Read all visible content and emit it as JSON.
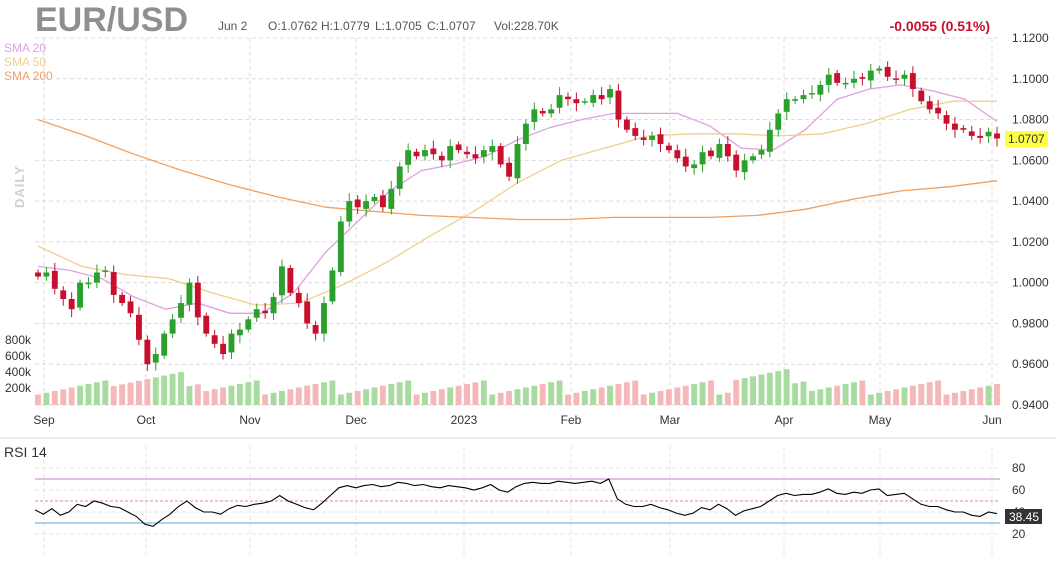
{
  "header": {
    "symbol": "EUR/USD",
    "date": "Jun 2",
    "open": "O:1.0762",
    "high": "H:1.0779",
    "low": "L:1.0705",
    "close": "C:1.0707",
    "volume": "Vol:228.70K",
    "change": "-0.0055 (0.51%)"
  },
  "watermark": "DAILY",
  "legend": [
    {
      "label": "SMA 20",
      "color": "#e0a0e0"
    },
    {
      "label": "SMA 50",
      "color": "#f0cf8c"
    },
    {
      "label": "SMA 200",
      "color": "#f0a060"
    }
  ],
  "colors": {
    "up": "#2ca02c",
    "down": "#c8102e",
    "up_volume": "#a8dba0",
    "down_volume": "#f4b8b8",
    "last_price_bg": "#ffff44",
    "rsi_line": "#000000",
    "rsi_upper": "#c080c0",
    "rsi_lower": "#5aa8d8",
    "rsi_mid": "#d88888"
  },
  "chart_data": [
    {
      "type": "candlestick",
      "title": "EUR/USD",
      "ylim": [
        0.94,
        1.12
      ],
      "y_ticks": [
        "1.1200",
        "1.1000",
        "1.0800",
        "1.0600",
        "1.0400",
        "1.0200",
        "1.0000",
        "0.9800",
        "0.9600",
        "0.9400"
      ],
      "x_ticks": [
        "Sep",
        "Oct",
        "Nov",
        "Dec",
        "2023",
        "Feb",
        "Mar",
        "Apr",
        "May",
        "Jun"
      ],
      "volume_ticks": [
        "800k",
        "600k",
        "400k",
        "200k"
      ],
      "volume_range": [
        0,
        1000000
      ],
      "last_price": "1.0707",
      "series": [
        {
          "name": "SMA 20",
          "values": [
            1.008,
            1.006,
            1.002,
            0.993,
            0.987,
            0.99,
            0.985,
            0.985,
            0.995,
            1.015,
            1.03,
            1.045,
            1.055,
            1.058,
            1.062,
            1.07,
            1.076,
            1.08,
            1.083,
            1.083,
            1.083,
            1.077,
            1.066,
            1.065,
            1.075,
            1.09,
            1.095,
            1.097,
            1.094,
            1.09,
            1.079
          ]
        },
        {
          "name": "SMA 50",
          "values": [
            1.018,
            1.008,
            1.004,
            1.002,
            0.995,
            0.989,
            0.99,
            0.999,
            1.01,
            1.023,
            1.035,
            1.049,
            1.06,
            1.066,
            1.072,
            1.073,
            1.073,
            1.072,
            1.073,
            1.078,
            1.085,
            1.089,
            1.089
          ]
        },
        {
          "name": "SMA 200",
          "values": [
            1.08,
            1.072,
            1.063,
            1.055,
            1.048,
            1.042,
            1.037,
            1.035,
            1.033,
            1.032,
            1.031,
            1.031,
            1.032,
            1.032,
            1.032,
            1.033,
            1.036,
            1.041,
            1.045,
            1.047,
            1.05
          ]
        }
      ],
      "ohlc_close": [
        1.003,
        1.005,
        0.997,
        0.992,
        0.987,
        1.0,
        1.0,
        1.005,
        1.006,
        0.994,
        0.99,
        0.985,
        0.972,
        0.96,
        0.965,
        0.975,
        0.982,
        0.99,
        1.0,
        0.983,
        0.975,
        0.97,
        0.965,
        0.975,
        0.977,
        0.982,
        0.987,
        0.985,
        0.993,
        1.008,
        0.995,
        0.99,
        0.98,
        0.975,
        0.99,
        1.006,
        1.03,
        1.04,
        1.037,
        1.04,
        1.042,
        1.037,
        1.046,
        1.057,
        1.065,
        1.062,
        1.065,
        1.063,
        1.06,
        1.067,
        1.065,
        1.063,
        1.061,
        1.065,
        1.067,
        1.058,
        1.052,
        1.068,
        1.078,
        1.085,
        1.083,
        1.085,
        1.092,
        1.09,
        1.088,
        1.089,
        1.092,
        1.09,
        1.095,
        1.08,
        1.075,
        1.072,
        1.07,
        1.072,
        1.068,
        1.065,
        1.061,
        1.057,
        1.058,
        1.064,
        1.062,
        1.068,
        1.062,
        1.055,
        1.06,
        1.062,
        1.065,
        1.075,
        1.083,
        1.09,
        1.09,
        1.092,
        1.093,
        1.097,
        1.102,
        1.098,
        1.098,
        1.1,
        1.1,
        1.104,
        1.105,
        1.101,
        1.1,
        1.102,
        1.095,
        1.089,
        1.085,
        1.083,
        1.078,
        1.075,
        1.075,
        1.072,
        1.071,
        1.074,
        1.0707
      ],
      "rsi": {
        "name": "RSI 14",
        "ylim": [
          0,
          100
        ],
        "y_ticks": [
          "80",
          "60",
          "40",
          "20"
        ],
        "levels": [
          70,
          50,
          30
        ],
        "last_value": "38.45",
        "values": [
          42,
          38,
          43,
          37,
          40,
          47,
          45,
          50,
          48,
          45,
          44,
          40,
          36,
          29,
          27,
          33,
          38,
          45,
          50,
          44,
          40,
          40,
          38,
          43,
          46,
          45,
          47,
          48,
          50,
          55,
          50,
          47,
          44,
          42,
          48,
          55,
          62,
          64,
          62,
          64,
          65,
          63,
          64,
          67,
          66,
          64,
          65,
          63,
          62,
          64,
          63,
          62,
          60,
          62,
          65,
          60,
          58,
          63,
          66,
          67,
          66,
          66,
          68,
          67,
          66,
          67,
          68,
          66,
          70,
          52,
          47,
          45,
          45,
          47,
          44,
          42,
          39,
          37,
          39,
          44,
          42,
          47,
          43,
          37,
          41,
          43,
          45,
          50,
          55,
          57,
          55,
          56,
          56,
          58,
          61,
          57,
          56,
          58,
          57,
          60,
          61,
          55,
          56,
          57,
          52,
          47,
          45,
          45,
          42,
          40,
          40,
          37,
          36,
          40,
          38.45
        ]
      }
    }
  ]
}
